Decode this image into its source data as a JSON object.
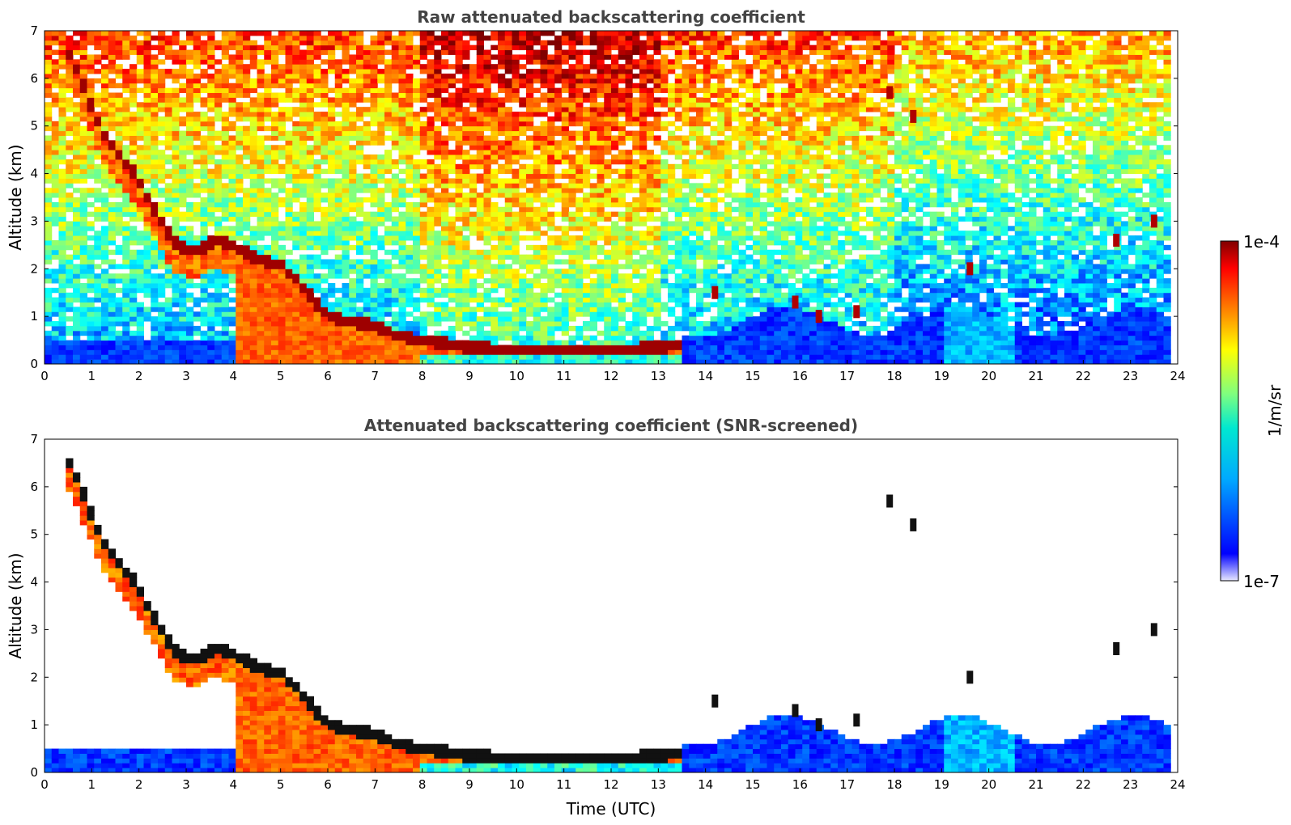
{
  "chart_data": [
    {
      "type": "heatmap",
      "title": "Raw attenuated backscattering coefficient",
      "xlabel": "",
      "ylabel": "Altitude (km)",
      "xlim": [
        0,
        24
      ],
      "ylim": [
        0,
        7
      ],
      "xticks": [
        "0",
        "1",
        "2",
        "3",
        "4",
        "5",
        "6",
        "7",
        "8",
        "9",
        "10",
        "11",
        "12",
        "13",
        "14",
        "15",
        "16",
        "17",
        "18",
        "19",
        "20",
        "21",
        "22",
        "23",
        "24"
      ],
      "yticks": [
        "0",
        "1",
        "2",
        "3",
        "4",
        "5",
        "6",
        "7"
      ],
      "screened": false,
      "cloud_layer": {
        "time": [
          0.45,
          0.8,
          1.2,
          1.5,
          1.9,
          2.3,
          2.7,
          3.0,
          3.3,
          3.6,
          4.0,
          4.5,
          5.0,
          5.5,
          6.0,
          6.5,
          7.0,
          7.5,
          8.0,
          8.5,
          9.0,
          10.0,
          11.0,
          12.0,
          13.0,
          13.5
        ],
        "altitude_km": [
          6.7,
          5.9,
          4.9,
          4.5,
          4.0,
          3.3,
          2.6,
          2.4,
          2.4,
          2.6,
          2.5,
          2.2,
          2.1,
          1.6,
          1.0,
          0.9,
          0.8,
          0.6,
          0.5,
          0.45,
          0.35,
          0.3,
          0.3,
          0.3,
          0.35,
          0.4
        ]
      },
      "scattered_clouds": [
        {
          "time": 14.2,
          "altitude_km": 1.5
        },
        {
          "time": 15.9,
          "altitude_km": 1.3
        },
        {
          "time": 16.4,
          "altitude_km": 1.0
        },
        {
          "time": 17.2,
          "altitude_km": 1.1
        },
        {
          "time": 17.9,
          "altitude_km": 5.7
        },
        {
          "time": 18.4,
          "altitude_km": 5.2
        },
        {
          "time": 19.6,
          "altitude_km": 2.0
        },
        {
          "time": 22.7,
          "altitude_km": 2.6
        },
        {
          "time": 23.5,
          "altitude_km": 3.0
        }
      ],
      "data_end_time": 23.8
    },
    {
      "type": "heatmap",
      "title": "Attenuated backscattering coefficient (SNR-screened)",
      "xlabel": "Time (UTC)",
      "ylabel": "Altitude (km)",
      "xlim": [
        0,
        24
      ],
      "ylim": [
        0,
        7
      ],
      "xticks": [
        "0",
        "1",
        "2",
        "3",
        "4",
        "5",
        "6",
        "7",
        "8",
        "9",
        "10",
        "11",
        "12",
        "13",
        "14",
        "15",
        "16",
        "17",
        "18",
        "19",
        "20",
        "21",
        "22",
        "23",
        "24"
      ],
      "yticks": [
        "0",
        "1",
        "2",
        "3",
        "4",
        "5",
        "6",
        "7"
      ],
      "screened": true,
      "data_end_time": 23.8
    }
  ],
  "colorbar": {
    "label": "1/m/sr",
    "max_label": "1e-4",
    "min_label": "1e-7",
    "scale": "log",
    "colormap": "jet",
    "colors": [
      "#e8e8ff",
      "#0000ff",
      "#00c8ff",
      "#7fff7f",
      "#ffff00",
      "#ff7f00",
      "#ff0000",
      "#800000"
    ]
  }
}
